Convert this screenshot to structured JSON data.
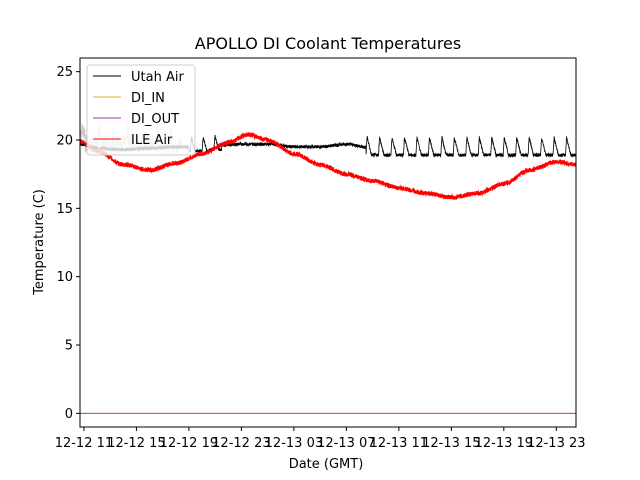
{
  "chart_data": {
    "type": "line",
    "title": "APOLLO DI Coolant Temperatures",
    "xlabel": "Date (GMT)",
    "ylabel": "Temperature (C)",
    "xlim_hours": [
      -0.3,
      37.5
    ],
    "ylim": [
      -1,
      26
    ],
    "y_ticks": [
      0,
      5,
      10,
      15,
      20,
      25
    ],
    "x_ticks": [
      {
        "hour": 0,
        "label": "12-12 11"
      },
      {
        "hour": 4,
        "label": "12-12 15"
      },
      {
        "hour": 8,
        "label": "12-12 19"
      },
      {
        "hour": 12,
        "label": "12-12 23"
      },
      {
        "hour": 16,
        "label": "12-13 03"
      },
      {
        "hour": 20,
        "label": "12-13 07"
      },
      {
        "hour": 24,
        "label": "12-13 11"
      },
      {
        "hour": 28,
        "label": "12-13 15"
      },
      {
        "hour": 32,
        "label": "12-13 19"
      },
      {
        "hour": 36,
        "label": "12-13 23"
      }
    ],
    "legend_position": "top-left",
    "series": [
      {
        "name": "Utah Air",
        "color": "#000000",
        "x": [
          -0.3,
          1,
          3,
          5,
          7,
          9,
          10,
          12,
          14,
          16,
          18,
          20,
          22,
          24,
          26,
          28,
          30,
          32,
          34,
          36,
          37.5
        ],
        "y": [
          19.7,
          19.4,
          19.3,
          19.4,
          19.5,
          19.5,
          19.6,
          19.7,
          19.7,
          19.5,
          19.5,
          19.7,
          19.4,
          19.4,
          19.4,
          19.4,
          19.4,
          19.4,
          19.4,
          19.4,
          19.4
        ],
        "cycling_spikes_after_hour": 21.5,
        "spike_amplitude": 1.3
      },
      {
        "name": "DI_IN",
        "color": "#e0a82e",
        "x": [
          -0.3,
          37.5
        ],
        "y": [
          0,
          0
        ]
      },
      {
        "name": "DI_OUT",
        "color": "#9b3da8",
        "x": [
          -0.3,
          37.5
        ],
        "y": [
          0,
          0
        ]
      },
      {
        "name": "ILE Air",
        "color": "#ff0000",
        "x": [
          -0.3,
          1,
          3,
          5,
          7,
          9,
          11,
          12.5,
          14,
          16,
          18,
          20,
          22,
          24,
          26,
          28,
          30,
          32,
          34,
          36,
          37.5
        ],
        "y": [
          19.9,
          19.2,
          18.2,
          17.8,
          18.3,
          19.0,
          19.8,
          20.4,
          20.0,
          19.0,
          18.2,
          17.5,
          17.0,
          16.5,
          16.1,
          15.8,
          16.1,
          16.8,
          17.8,
          18.4,
          18.2
        ]
      }
    ],
    "faint_gray_overlay": {
      "name": "ILE Air (earlier segment)",
      "color": "#c8c8c8",
      "x_range": [
        -0.3,
        7.5
      ],
      "y_center": 19.7
    }
  }
}
